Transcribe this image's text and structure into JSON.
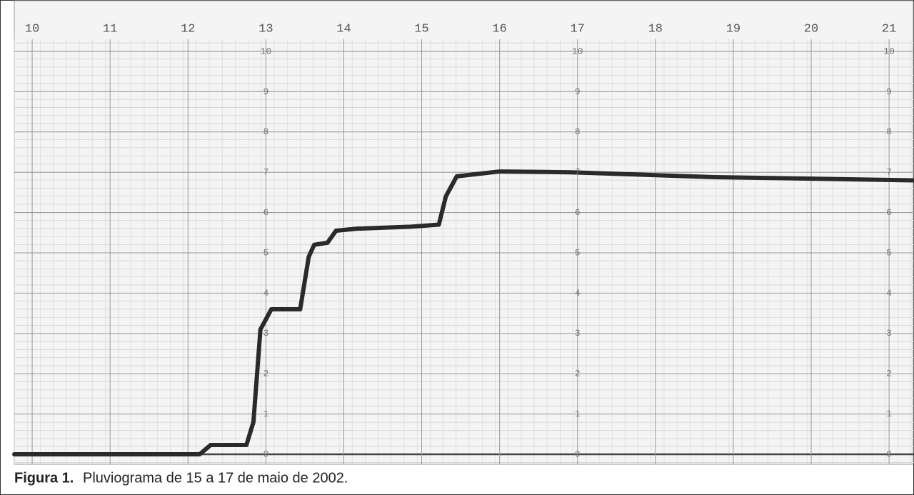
{
  "chart_data": {
    "type": "line",
    "caption_label": "Figura 1.",
    "caption": "Pluviograma de 15 a 17 de maio de 2002.",
    "xlim": [
      9.77,
      21.32
    ],
    "xticks": [
      10,
      11,
      12,
      13,
      14,
      15,
      16,
      17,
      18,
      19,
      20,
      21
    ],
    "ylim": [
      0,
      10
    ],
    "yticks": [
      0,
      1,
      2,
      3,
      4,
      5,
      6,
      7,
      8,
      9,
      10
    ],
    "y_label_hours": [
      13,
      17,
      21
    ],
    "grid": true,
    "x": [
      9.77,
      12.15,
      12.29,
      12.75,
      12.84,
      12.93,
      13.07,
      13.44,
      13.55,
      13.62,
      13.79,
      13.9,
      14.17,
      14.86,
      15.22,
      15.31,
      15.45,
      16.0,
      16.92,
      18.75,
      21.32
    ],
    "series": [
      {
        "color": "#2a2a2a",
        "values": [
          0,
          0,
          0.23,
          0.23,
          0.8,
          3.1,
          3.6,
          3.6,
          4.9,
          5.2,
          5.25,
          5.55,
          5.6,
          5.65,
          5.7,
          6.4,
          6.9,
          7.02,
          7.0,
          6.88,
          6.8
        ]
      }
    ]
  }
}
